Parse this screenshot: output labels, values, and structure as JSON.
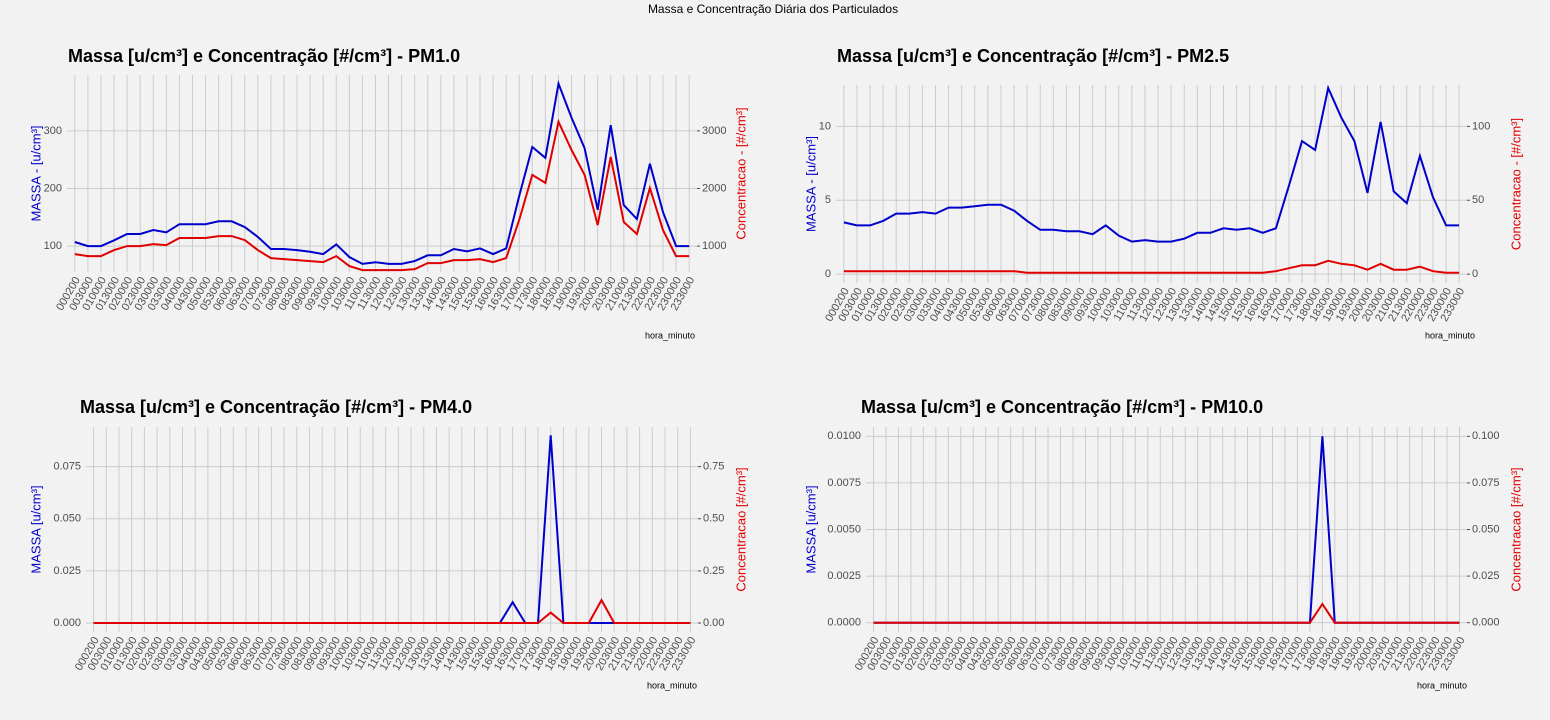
{
  "figure_title": "Massa e Concentração Diária dos Particulados",
  "chart_data": [
    {
      "type": "line",
      "title": "Massa [u/cm³] e Concentração [#/cm³] - PM1.0",
      "x_label": "hora_minuto",
      "y_label": "MASSA - [u/cm³]",
      "y2_label": "Concentracao - [#/cm³]",
      "categories": [
        "000200",
        "003000",
        "010000",
        "013000",
        "020000",
        "023000",
        "030000",
        "033000",
        "040000",
        "043000",
        "050000",
        "053000",
        "060000",
        "063000",
        "070000",
        "073000",
        "080000",
        "083000",
        "090000",
        "093000",
        "100000",
        "103000",
        "110000",
        "113000",
        "120000",
        "123000",
        "130000",
        "133000",
        "140000",
        "143000",
        "150000",
        "153000",
        "160000",
        "163000",
        "170000",
        "173000",
        "180000",
        "183000",
        "190000",
        "193000",
        "200000",
        "203000",
        "210000",
        "213000",
        "220000",
        "223000",
        "230000",
        "233000"
      ],
      "series": [
        {
          "color": "#0000cc",
          "values": [
            107,
            100,
            100,
            110,
            121,
            121,
            128,
            124,
            138,
            138,
            138,
            143,
            143,
            133,
            116,
            95,
            95,
            93,
            90,
            86,
            103,
            81,
            69,
            72,
            69,
            69,
            74,
            84,
            84,
            95,
            91,
            96,
            86,
            96,
            187,
            272,
            253,
            382,
            323,
            270,
            163,
            310,
            171,
            147,
            243,
            159,
            100,
            100
          ]
        },
        {
          "color": "#e00000",
          "axis": "y2",
          "values": [
            860,
            826,
            826,
            930,
            1000,
            1000,
            1035,
            1017,
            1140,
            1140,
            1140,
            1174,
            1174,
            1104,
            930,
            791,
            774,
            757,
            740,
            722,
            826,
            652,
            583,
            583,
            583,
            583,
            600,
            704,
            704,
            757,
            757,
            774,
            722,
            791,
            1452,
            2235,
            2096,
            3157,
            2670,
            2235,
            1365,
            2548,
            1417,
            1209,
            2009,
            1278,
            826,
            826
          ]
        }
      ],
      "ylim": [
        55,
        397
      ],
      "yticks": [
        100,
        200,
        300
      ],
      "y2lim": [
        550,
        3970
      ],
      "y2ticks": [
        1000,
        2000,
        3000
      ],
      "grid": true
    },
    {
      "type": "line",
      "title": "Massa [u/cm³] e Concentração [#/cm³] - PM2.5",
      "x_label": "hora_minuto",
      "y_label": "MASSA - [u/cm³]",
      "y2_label": "Concentracao - [#/cm³]",
      "categories": [
        "000200",
        "003000",
        "010000",
        "013000",
        "020000",
        "023000",
        "030000",
        "033000",
        "040000",
        "043000",
        "050000",
        "053000",
        "060000",
        "063000",
        "070000",
        "073000",
        "080000",
        "083000",
        "090000",
        "093000",
        "100000",
        "103000",
        "110000",
        "113000",
        "120000",
        "123000",
        "130000",
        "133000",
        "140000",
        "143000",
        "150000",
        "153000",
        "160000",
        "163000",
        "170000",
        "173000",
        "180000",
        "183000",
        "190000",
        "193000",
        "200000",
        "203000",
        "210000",
        "213000",
        "220000",
        "223000",
        "230000",
        "233000"
      ],
      "series": [
        {
          "color": "#0000cc",
          "values": [
            3.5,
            3.3,
            3.3,
            3.6,
            4.1,
            4.1,
            4.2,
            4.1,
            4.5,
            4.5,
            4.6,
            4.7,
            4.7,
            4.3,
            3.6,
            3.0,
            3.0,
            2.9,
            2.9,
            2.7,
            3.3,
            2.6,
            2.2,
            2.3,
            2.2,
            2.2,
            2.4,
            2.8,
            2.8,
            3.1,
            3.0,
            3.1,
            2.8,
            3.1,
            6.0,
            9.0,
            8.4,
            12.6,
            10.6,
            9.0,
            5.5,
            10.3,
            5.6,
            4.8,
            8.0,
            5.2,
            3.3,
            3.3
          ]
        },
        {
          "color": "#e00000",
          "axis": "y2",
          "values": [
            2,
            2,
            2,
            2,
            2,
            2,
            2,
            2,
            2,
            2,
            2,
            2,
            2,
            2,
            1,
            1,
            1,
            1,
            1,
            1,
            1,
            1,
            1,
            1,
            1,
            1,
            1,
            1,
            1,
            1,
            1,
            1,
            1,
            2,
            4,
            6,
            6,
            9,
            7,
            6,
            3,
            7,
            3,
            3,
            5,
            2,
            1,
            1
          ]
        }
      ],
      "ylim": [
        -0.6,
        12.8
      ],
      "yticks": [
        0,
        5,
        10
      ],
      "y2lim": [
        -6,
        128
      ],
      "y2ticks": [
        0,
        50,
        100
      ],
      "grid": true
    },
    {
      "type": "line",
      "title": "Massa [u/cm³] e Concentração [#/cm³] - PM4.0",
      "x_label": "hora_minuto",
      "y_label": "MASSA [u/cm³]",
      "y2_label": "Concentracao [#/cm³]",
      "categories": [
        "000200",
        "003000",
        "010000",
        "013000",
        "020000",
        "023000",
        "030000",
        "033000",
        "040000",
        "043000",
        "050000",
        "053000",
        "060000",
        "063000",
        "070000",
        "073000",
        "080000",
        "083000",
        "090000",
        "093000",
        "100000",
        "103000",
        "110000",
        "113000",
        "120000",
        "123000",
        "130000",
        "133000",
        "140000",
        "143000",
        "150000",
        "153000",
        "160000",
        "163000",
        "170000",
        "173000",
        "180000",
        "183000",
        "190000",
        "193000",
        "200000",
        "203000",
        "210000",
        "213000",
        "220000",
        "223000",
        "230000",
        "233000"
      ],
      "series": [
        {
          "color": "#0000cc",
          "values": [
            0,
            0,
            0,
            0,
            0,
            0,
            0,
            0,
            0,
            0,
            0,
            0,
            0,
            0,
            0,
            0,
            0,
            0,
            0,
            0,
            0,
            0,
            0,
            0,
            0,
            0,
            0,
            0,
            0,
            0,
            0,
            0,
            0,
            0.01,
            0,
            0,
            0.09,
            0,
            0,
            0,
            0,
            0,
            0,
            0,
            0,
            0,
            0,
            0
          ]
        },
        {
          "color": "#e00000",
          "axis": "y2",
          "values": [
            0,
            0,
            0,
            0,
            0,
            0,
            0,
            0,
            0,
            0,
            0,
            0,
            0,
            0,
            0,
            0,
            0,
            0,
            0,
            0,
            0,
            0,
            0,
            0,
            0,
            0,
            0,
            0,
            0,
            0,
            0,
            0,
            0,
            0,
            0,
            0,
            0.05,
            0,
            0,
            0,
            0.11,
            0,
            0,
            0,
            0,
            0,
            0,
            0
          ]
        }
      ],
      "ylim": [
        -0.0043,
        0.094
      ],
      "yticks": [
        {
          "value": 0,
          "label": "0.000"
        },
        {
          "value": 0.025,
          "label": "0.025"
        },
        {
          "value": 0.05,
          "label": "0.050"
        },
        {
          "value": 0.075,
          "label": "0.075"
        }
      ],
      "y2lim": [
        -0.043,
        0.94
      ],
      "y2ticks": [
        {
          "value": 0,
          "label": "0.00"
        },
        {
          "value": 0.25,
          "label": "0.25"
        },
        {
          "value": 0.5,
          "label": "0.50"
        },
        {
          "value": 0.75,
          "label": "0.75"
        }
      ],
      "grid": true
    },
    {
      "type": "line",
      "title": "Massa [u/cm³] e Concentração [#/cm³] - PM10.0",
      "x_label": "hora_minuto",
      "y_label": "MASSA [u/cm³]",
      "y2_label": "Concentracao [#/cm³]",
      "categories": [
        "000200",
        "003000",
        "010000",
        "013000",
        "020000",
        "023000",
        "030000",
        "033000",
        "040000",
        "043000",
        "050000",
        "053000",
        "060000",
        "063000",
        "070000",
        "073000",
        "080000",
        "083000",
        "090000",
        "093000",
        "100000",
        "103000",
        "110000",
        "113000",
        "120000",
        "123000",
        "130000",
        "133000",
        "140000",
        "143000",
        "150000",
        "153000",
        "160000",
        "163000",
        "170000",
        "173000",
        "180000",
        "183000",
        "190000",
        "193000",
        "200000",
        "203000",
        "210000",
        "213000",
        "220000",
        "223000",
        "230000",
        "233000"
      ],
      "series": [
        {
          "color": "#0000cc",
          "values": [
            0,
            0,
            0,
            0,
            0,
            0,
            0,
            0,
            0,
            0,
            0,
            0,
            0,
            0,
            0,
            0,
            0,
            0,
            0,
            0,
            0,
            0,
            0,
            0,
            0,
            0,
            0,
            0,
            0,
            0,
            0,
            0,
            0,
            0,
            0,
            0,
            0.01,
            0,
            0,
            0,
            0,
            0,
            0,
            0,
            0,
            0,
            0,
            0
          ]
        },
        {
          "color": "#e00000",
          "axis": "y2",
          "values": [
            0,
            0,
            0,
            0,
            0,
            0,
            0,
            0,
            0,
            0,
            0,
            0,
            0,
            0,
            0,
            0,
            0,
            0,
            0,
            0,
            0,
            0,
            0,
            0,
            0,
            0,
            0,
            0,
            0,
            0,
            0,
            0,
            0,
            0,
            0,
            0,
            0.01,
            0,
            0,
            0,
            0,
            0,
            0,
            0,
            0,
            0,
            0,
            0
          ]
        }
      ],
      "ylim": [
        -0.0005,
        0.0105
      ],
      "yticks": [
        {
          "value": 0,
          "label": "0.0000"
        },
        {
          "value": 0.0025,
          "label": "0.0025"
        },
        {
          "value": 0.005,
          "label": "0.0050"
        },
        {
          "value": 0.0075,
          "label": "0.0075"
        },
        {
          "value": 0.01,
          "label": "0.0100"
        }
      ],
      "y2lim": [
        -0.005,
        0.105
      ],
      "y2ticks": [
        {
          "value": 0,
          "label": "0.000"
        },
        {
          "value": 0.025,
          "label": "0.025"
        },
        {
          "value": 0.05,
          "label": "0.050"
        },
        {
          "value": 0.075,
          "label": "0.075"
        },
        {
          "value": 0.1,
          "label": "0.100"
        }
      ],
      "grid": true
    }
  ]
}
